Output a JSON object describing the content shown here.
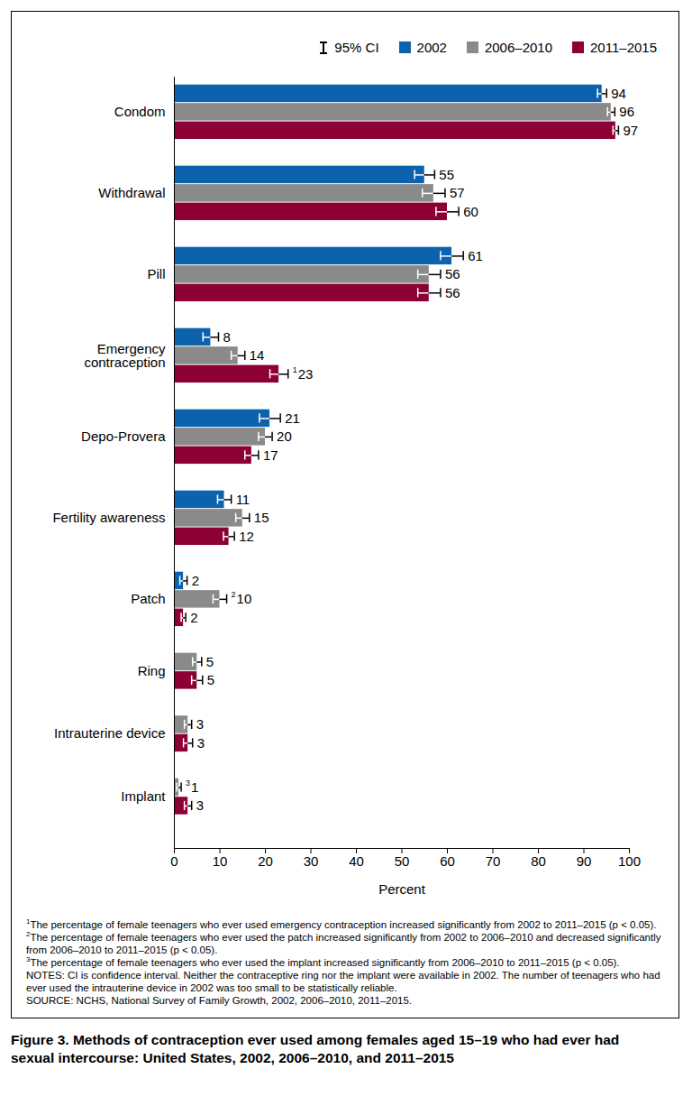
{
  "chart_data": {
    "type": "bar",
    "orientation": "horizontal",
    "title": "Figure 3. Methods of contraception ever used among females aged 15–19 who had ever had sexual intercourse: United States, 2002, 2006–2010, and 2011–2015",
    "categories": [
      "Condom",
      "Withdrawal",
      "Pill",
      "Emergency contraception",
      "Depo-Provera",
      "Fertility awareness",
      "Patch",
      "Ring",
      "Intrauterine device",
      "Implant"
    ],
    "series": [
      {
        "name": "2002",
        "color": "#0d62ae",
        "values": [
          94,
          55,
          61,
          8,
          21,
          11,
          2,
          null,
          null,
          null
        ],
        "errors": [
          1,
          2.2,
          2.5,
          1.7,
          2.3,
          1.5,
          0.8,
          null,
          null,
          null
        ],
        "footnote_markers": [
          null,
          null,
          null,
          null,
          null,
          null,
          null,
          null,
          null,
          null
        ]
      },
      {
        "name": "2006–2010",
        "color": "#8a8a8a",
        "values": [
          96,
          57,
          56,
          14,
          20,
          15,
          10,
          5,
          3,
          1
        ],
        "errors": [
          0.8,
          2.5,
          2.5,
          1.5,
          1.5,
          1.5,
          1.5,
          1,
          0.8,
          0.5
        ],
        "footnote_markers": [
          null,
          null,
          null,
          null,
          null,
          null,
          "2",
          null,
          null,
          "3"
        ]
      },
      {
        "name": "2011–2015",
        "color": "#8c0035",
        "values": [
          97,
          60,
          56,
          23,
          17,
          12,
          2,
          5,
          3,
          3
        ],
        "errors": [
          0.6,
          2.5,
          2.5,
          2,
          1.5,
          1.2,
          0.5,
          1.2,
          1,
          0.8
        ],
        "footnote_markers": [
          null,
          null,
          null,
          "1",
          null,
          null,
          null,
          null,
          null,
          null
        ]
      }
    ],
    "xlabel": "Percent",
    "xlim": [
      0,
      100
    ],
    "xticks": [
      0,
      10,
      20,
      30,
      40,
      50,
      60,
      70,
      80,
      90,
      100
    ],
    "grid": false,
    "legend": "top-right",
    "data_labels": true,
    "tick_labels": "x",
    "ci_label": "95% CI",
    "footnotes": [
      {
        "marker": "1",
        "text": "The percentage of female teenagers who ever used emergency contraception increased significantly from 2002 to 2011–2015 (p < 0.05)."
      },
      {
        "marker": "2",
        "text": "The percentage of female teenagers who ever used the patch increased significantly from 2002 to 2006–2010 and decreased significantly from 2006–2010 to 2011–2015 (p < 0.05)."
      },
      {
        "marker": "3",
        "text": "The percentage of female teenagers who ever used the implant increased significantly from 2006–2010 to 2011–2015 (p < 0.05)."
      }
    ],
    "notes": "NOTES: CI is confidence interval. Neither the contraceptive ring nor the implant were available in 2002. The number of teenagers who had ever used the intrauterine device in 2002 was too small to be statistically reliable.",
    "source": "SOURCE: NCHS, National Survey of Family Growth, 2002, 2006–2010, 2011–2015."
  }
}
